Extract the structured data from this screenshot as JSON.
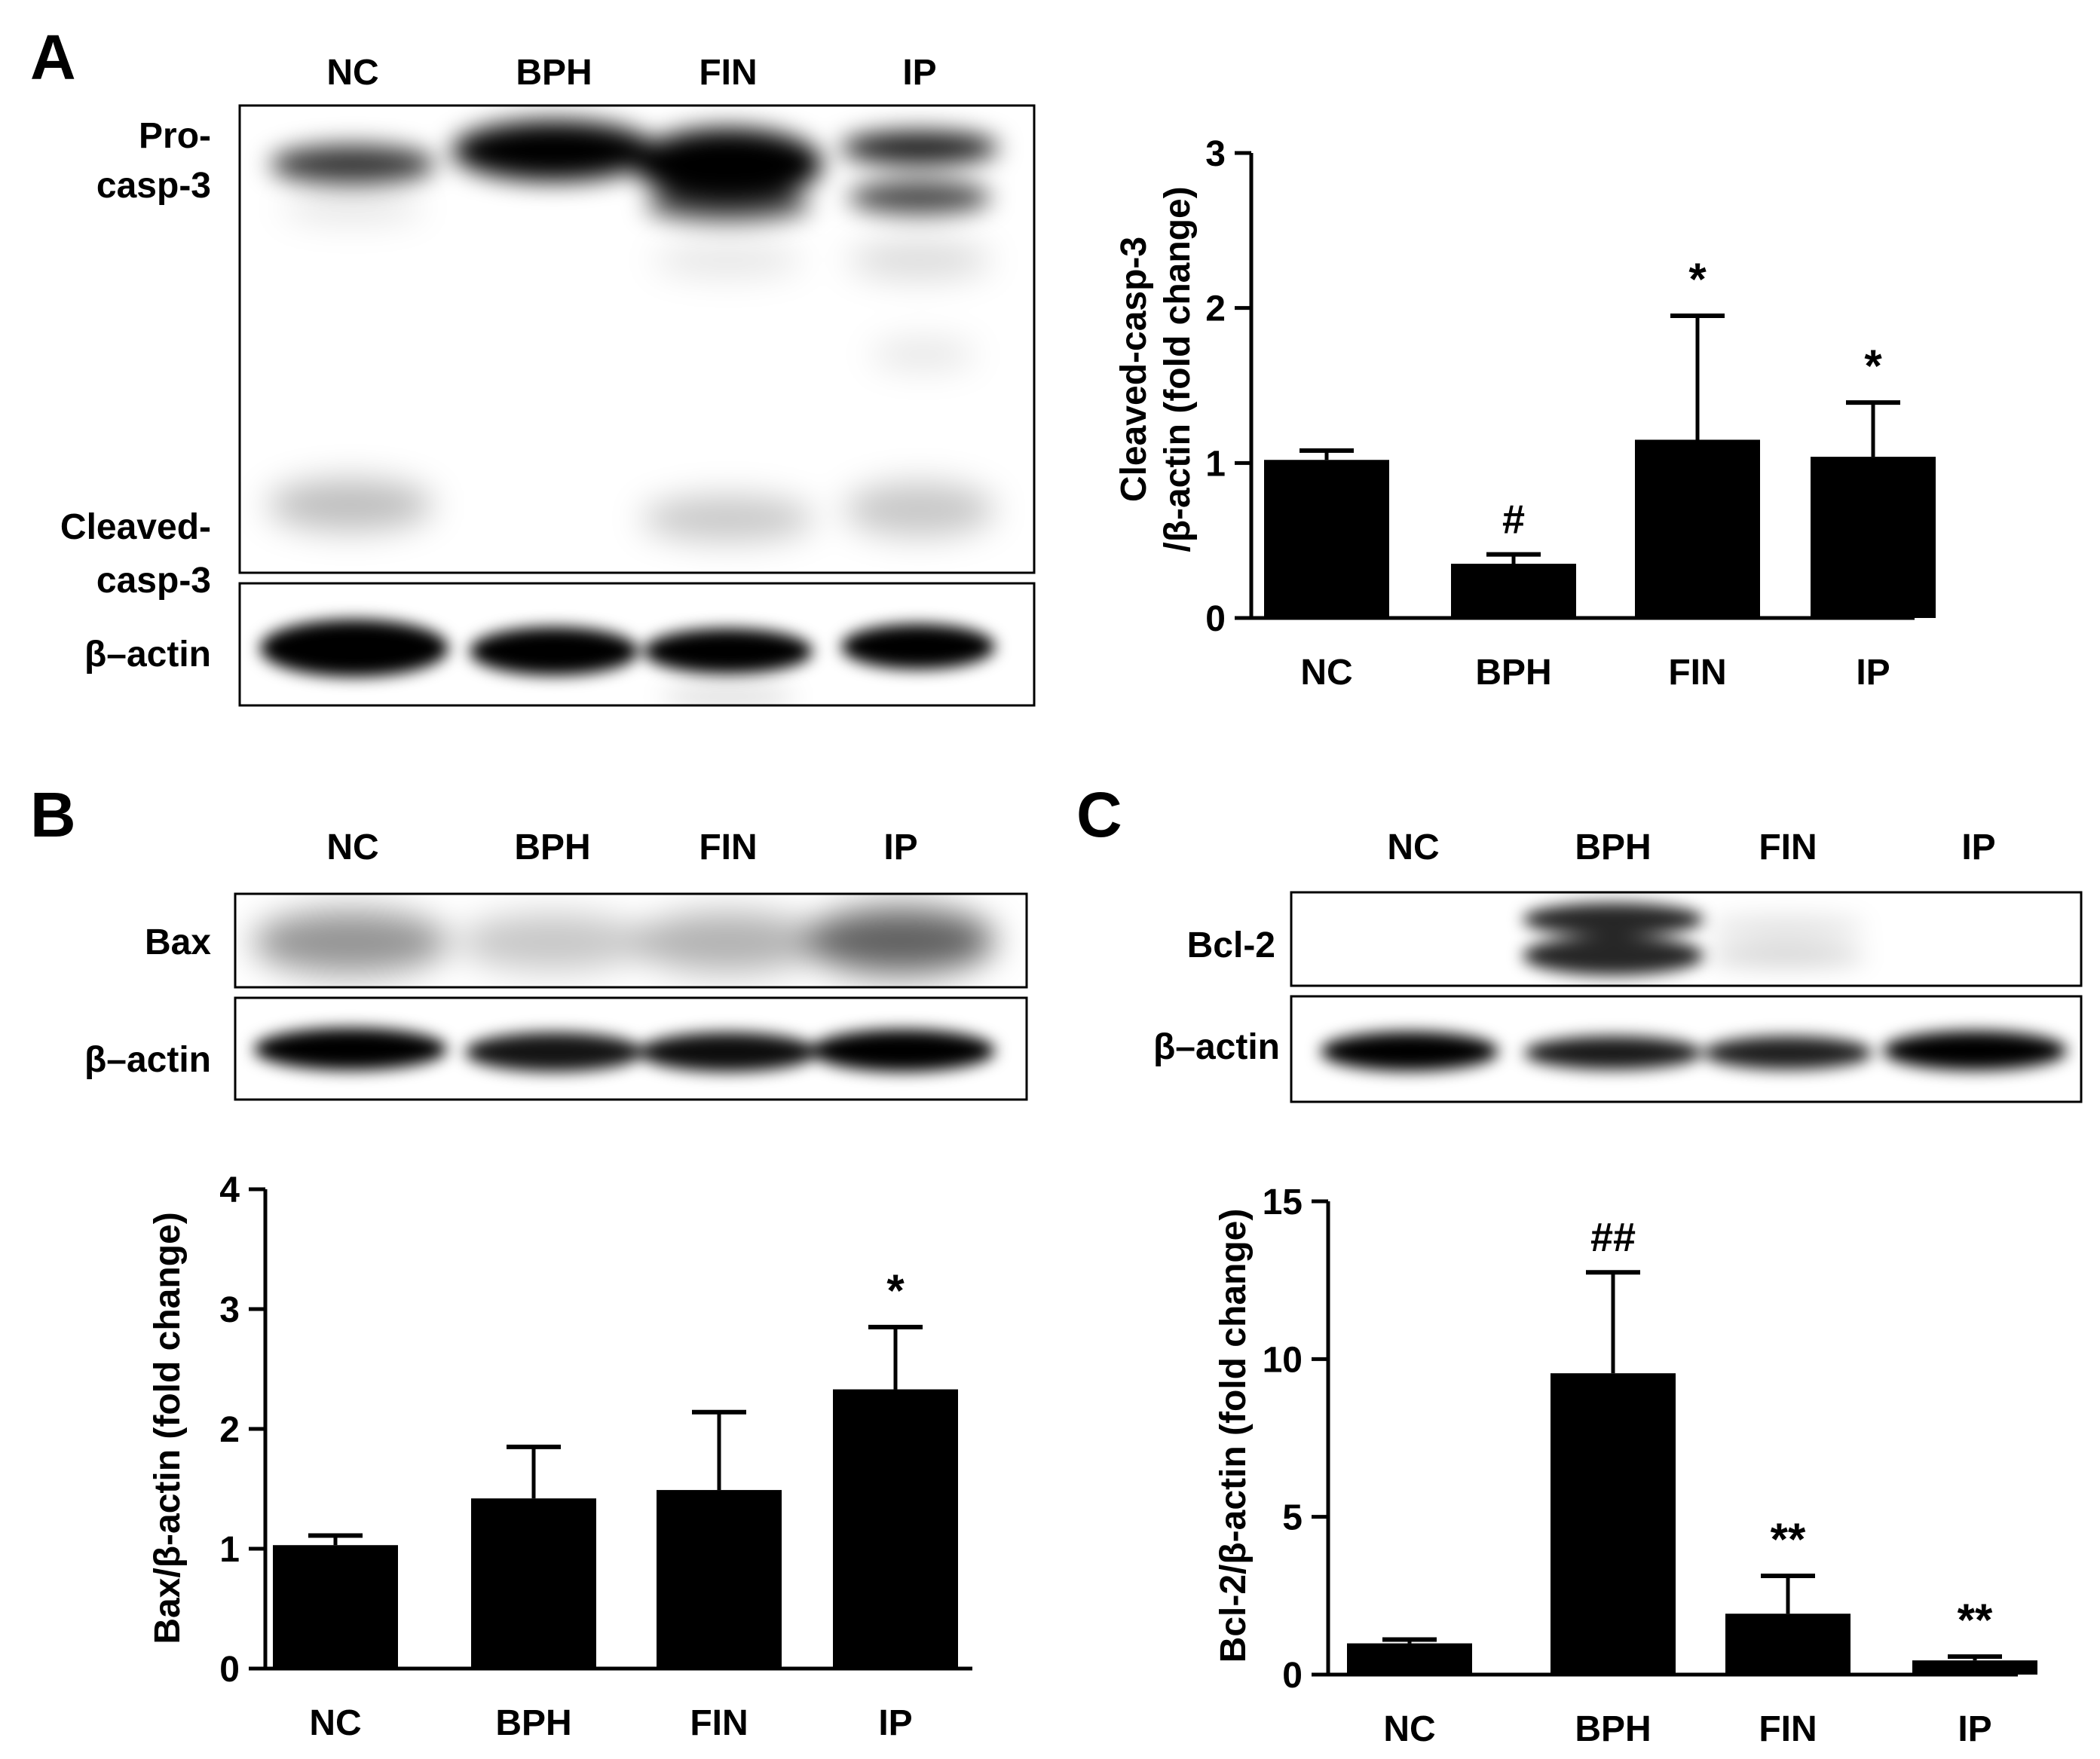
{
  "panels": {
    "A": {
      "letter": "A",
      "lanes": [
        "NC",
        "BPH",
        "FIN",
        "IP"
      ],
      "blot_labels": {
        "pro_line1": "Pro-",
        "pro_line2": "casp-3",
        "cleaved_line1": "Cleaved-",
        "cleaved_line2": "casp-3",
        "actin": "β–actin"
      }
    },
    "B": {
      "letter": "B",
      "lanes": [
        "NC",
        "BPH",
        "FIN",
        "IP"
      ],
      "blot_labels": {
        "protein": "Bax",
        "actin": "β–actin"
      }
    },
    "C": {
      "letter": "C",
      "lanes": [
        "NC",
        "BPH",
        "FIN",
        "IP"
      ],
      "blot_labels": {
        "protein": "Bcl-2",
        "actin": "β–actin"
      }
    }
  },
  "chart_data": [
    {
      "id": "A",
      "type": "bar",
      "title": "",
      "xlabel": "",
      "ylabel_line1": "Cleaved-casp-3",
      "ylabel_line2": "/β-actin (fold change)",
      "categories": [
        "NC",
        "BPH",
        "FIN",
        "IP"
      ],
      "values": [
        1.02,
        0.35,
        1.15,
        1.04
      ],
      "errors": [
        0.06,
        0.06,
        0.8,
        0.35
      ],
      "annotations": [
        "",
        "#",
        "*",
        "*"
      ],
      "ylim": [
        0,
        3
      ],
      "yticks": [
        0,
        1,
        2,
        3
      ],
      "grid": false
    },
    {
      "id": "B",
      "type": "bar",
      "title": "",
      "xlabel": "",
      "ylabel": "Bax/β-actin (fold change)",
      "categories": [
        "NC",
        "BPH",
        "FIN",
        "IP"
      ],
      "values": [
        1.03,
        1.42,
        1.49,
        2.33
      ],
      "errors": [
        0.08,
        0.43,
        0.65,
        0.52
      ],
      "annotations": [
        "",
        "",
        "",
        "*"
      ],
      "ylim": [
        0,
        4
      ],
      "yticks": [
        0,
        1,
        2,
        3,
        4
      ],
      "grid": false
    },
    {
      "id": "C",
      "type": "bar",
      "title": "",
      "xlabel": "",
      "ylabel": "Bcl-2/β-actin (fold change)",
      "categories": [
        "NC",
        "BPH",
        "FIN",
        "IP"
      ],
      "values": [
        0.99,
        9.55,
        1.93,
        0.45
      ],
      "errors": [
        0.12,
        3.2,
        1.2,
        0.12
      ],
      "annotations": [
        "",
        "##",
        "**",
        "**"
      ],
      "ylim": [
        0,
        15
      ],
      "yticks": [
        0,
        5,
        10,
        15
      ],
      "grid": false
    }
  ]
}
